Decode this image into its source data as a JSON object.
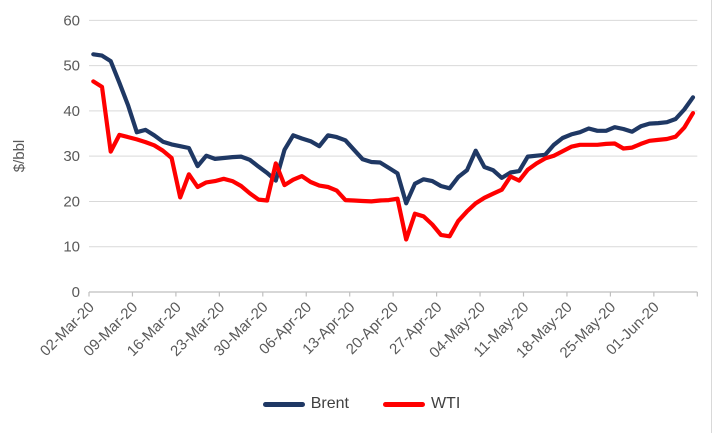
{
  "chart_data": {
    "type": "line",
    "title": "",
    "xlabel": "",
    "ylabel": "$/bbl",
    "ylim": [
      0,
      60
    ],
    "yticks": [
      0,
      10,
      20,
      30,
      40,
      50,
      60
    ],
    "grid": true,
    "legend_position": "bottom",
    "x_tick_labels": [
      "02-Mar-20",
      "09-Mar-20",
      "16-Mar-20",
      "23-Mar-20",
      "30-Mar-20",
      "06-Apr-20",
      "13-Apr-20",
      "20-Apr-20",
      "27-Apr-20",
      "04-May-20",
      "11-May-20",
      "18-May-20",
      "25-May-20",
      "01-Jun-20"
    ],
    "points_per_tick": 5,
    "series": [
      {
        "name": "Brent",
        "color": "#1f3864",
        "values": [
          52.5,
          52.2,
          51.0,
          46.2,
          41.2,
          35.3,
          35.8,
          34.6,
          33.2,
          32.6,
          32.2,
          31.8,
          27.8,
          30.1,
          29.4,
          29.6,
          29.8,
          29.9,
          29.2,
          27.7,
          26.3,
          24.6,
          31.4,
          34.6,
          33.9,
          33.3,
          32.2,
          34.6,
          34.2,
          33.5,
          31.4,
          29.3,
          28.7,
          28.6,
          27.4,
          26.2,
          19.6,
          23.9,
          24.9,
          24.5,
          23.4,
          22.9,
          25.4,
          26.9,
          31.2,
          27.6,
          26.9,
          25.2,
          26.4,
          26.7,
          29.9,
          30.1,
          30.3,
          32.5,
          34.0,
          34.8,
          35.3,
          36.1,
          35.6,
          35.6,
          36.4,
          36.0,
          35.4,
          36.6,
          37.2,
          37.3,
          37.5,
          38.2,
          40.3,
          43.0
        ]
      },
      {
        "name": "WTI",
        "color": "#ff0000",
        "values": [
          46.5,
          45.3,
          31.0,
          34.7,
          34.2,
          33.7,
          33.1,
          32.4,
          31.2,
          29.6,
          20.9,
          26.0,
          23.2,
          24.2,
          24.5,
          25.0,
          24.5,
          23.4,
          21.8,
          20.4,
          20.2,
          28.4,
          23.6,
          24.8,
          25.6,
          24.3,
          23.5,
          23.2,
          22.4,
          20.3,
          20.2,
          20.1,
          20.0,
          20.2,
          20.3,
          20.6,
          11.6,
          17.3,
          16.7,
          14.9,
          12.6,
          12.3,
          15.7,
          17.8,
          19.6,
          20.8,
          21.7,
          22.6,
          25.5,
          24.6,
          27.0,
          28.4,
          29.5,
          30.1,
          31.1,
          32.1,
          32.5,
          32.5,
          32.5,
          32.7,
          32.8,
          31.7,
          31.9,
          32.7,
          33.4,
          33.6,
          33.8,
          34.3,
          36.3,
          39.5
        ]
      }
    ],
    "colors": {
      "gridline": "#d9d9d9",
      "axis_line": "#bfbfbf",
      "tick_label": "#595959",
      "legend_text": "#404040"
    }
  }
}
